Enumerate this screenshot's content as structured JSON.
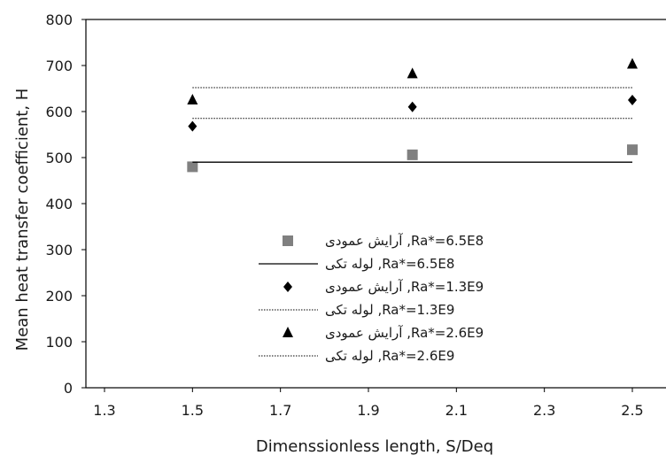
{
  "chart_data": {
    "type": "scatter",
    "title": "",
    "xlabel": "Dimenssionless length, S/Deq",
    "ylabel": "Mean heat transfer coefficient, H",
    "xlim": [
      1.3,
      2.5
    ],
    "ylim": [
      0,
      800
    ],
    "x_ticks": [
      "1.3",
      "1.5",
      "1.7",
      "1.9",
      "2.1",
      "2.3",
      "2.5"
    ],
    "y_ticks": [
      "0",
      "100",
      "200",
      "300",
      "400",
      "500",
      "600",
      "700",
      "800"
    ],
    "grid": false,
    "legend_position": "center",
    "series": [
      {
        "name": "آرایش عمودی ,Ra*=6.5E8",
        "kind": "marker",
        "marker": "square",
        "color": "#808080",
        "x": [
          1.5,
          2.0,
          2.5
        ],
        "y": [
          480,
          506,
          517
        ]
      },
      {
        "name": "لوله تکی ,Ra*=6.5E8",
        "kind": "line",
        "line_style": "solid",
        "color": "#000000",
        "x": [
          1.5,
          2.5
        ],
        "y": [
          490,
          490
        ]
      },
      {
        "name": "آرایش عمودی ,Ra*=1.3E9",
        "kind": "marker",
        "marker": "diamond",
        "color": "#000000",
        "x": [
          1.5,
          2.0,
          2.5
        ],
        "y": [
          568,
          610,
          625
        ]
      },
      {
        "name": "لوله تکی ,Ra*=1.3E9",
        "kind": "line",
        "line_style": "dotted",
        "color": "#000000",
        "x": [
          1.5,
          2.5
        ],
        "y": [
          585,
          585
        ]
      },
      {
        "name": "آرایش عمودی ,Ra*=2.6E9",
        "kind": "marker",
        "marker": "triangle",
        "color": "#000000",
        "x": [
          1.5,
          2.0,
          2.5
        ],
        "y": [
          625,
          682,
          703
        ]
      },
      {
        "name": "لوله تکی ,Ra*=2.6E9",
        "kind": "line",
        "line_style": "dotted",
        "color": "#000000",
        "x": [
          1.5,
          2.5
        ],
        "y": [
          652,
          652
        ]
      }
    ]
  }
}
